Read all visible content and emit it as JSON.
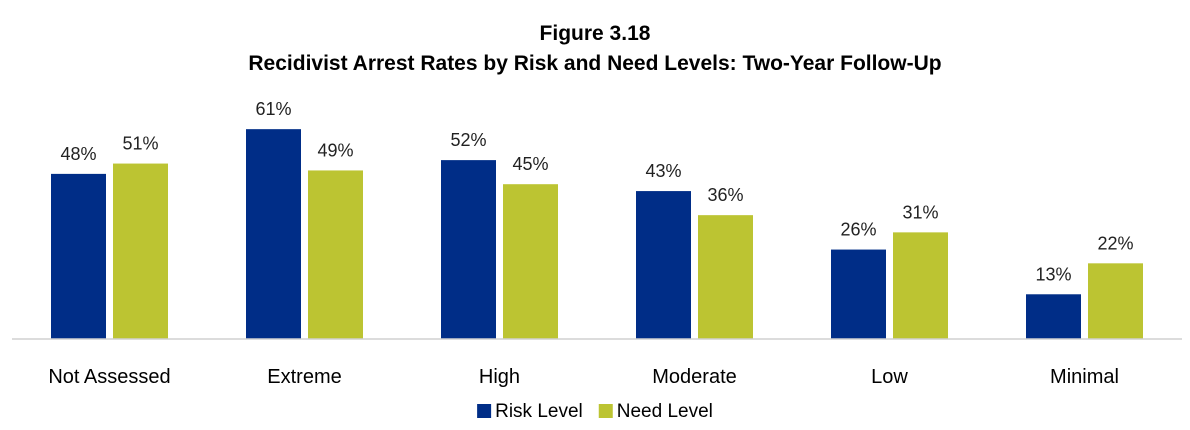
{
  "title_line1": "Figure 3.18",
  "title_line2": "Recidivist Arrest Rates by Risk and Need Levels: Two-Year Follow-Up",
  "chart_data": {
    "type": "bar",
    "categories": [
      "Not Assessed",
      "Extreme",
      "High",
      "Moderate",
      "Low",
      "Minimal"
    ],
    "series": [
      {
        "name": "Risk Level",
        "values": [
          48,
          61,
          52,
          43,
          26,
          13
        ],
        "labels": [
          "48%",
          "61%",
          "52%",
          "43%",
          "26%",
          "13%"
        ],
        "color": "#002d87"
      },
      {
        "name": "Need Level",
        "values": [
          51,
          49,
          45,
          36,
          31,
          22
        ],
        "labels": [
          "51%",
          "49%",
          "45%",
          "36%",
          "31%",
          "22%"
        ],
        "color": "#bcc432"
      }
    ],
    "ylim": [
      0,
      70
    ],
    "value_format": "percent",
    "grid": false,
    "legend_position": "bottom-center"
  }
}
